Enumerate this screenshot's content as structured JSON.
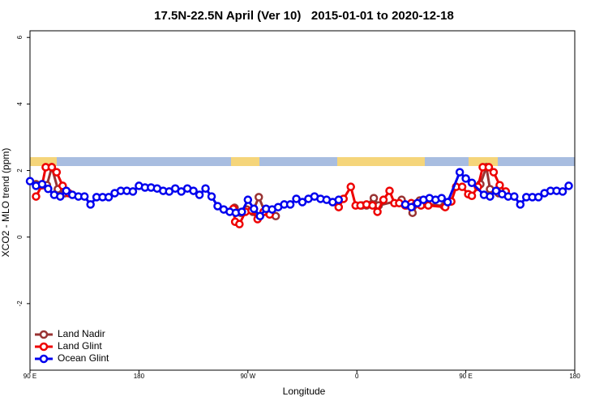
{
  "chart_data": {
    "type": "line",
    "title": "17.5N-22.5N April (Ver 10)   2015-01-01 to 2020-12-18",
    "x_label": "Longitude",
    "y_label": "XCO2 - MLO trend (ppm)",
    "xlim": [
      90,
      540
    ],
    "ylim": [
      -4,
      6.2
    ],
    "xticks": [
      {
        "value": 90,
        "label": "90 E"
      },
      180,
      {
        "value": 270,
        "label": "90 W"
      },
      {
        "value": 360,
        "label": "0"
      },
      {
        "value": 450,
        "label": "90 E"
      },
      {
        "value": 540,
        "label": "180"
      }
    ],
    "yticks": [
      -2,
      0,
      2,
      4,
      6
    ],
    "legend": "bottom-left",
    "series": [
      {
        "name": "Land Nadir",
        "color": "#993333",
        "x": [
          95,
          100,
          104,
          108,
          113,
          119,
          200,
          259,
          264,
          269,
          274,
          279,
          284,
          288,
          293,
          330,
          364,
          368,
          374,
          378,
          397,
          401,
          406,
          412,
          417,
          432,
          437,
          450,
          462,
          467,
          470,
          477
        ],
        "values": [
          1.59,
          1.56,
          1.56,
          2.1,
          1.44,
          1.32,
          null,
          0.88,
          0.73,
          0.83,
          0.76,
          1.2,
          0.76,
          0.76,
          0.63,
          null,
          0.95,
          0.95,
          1.17,
          0.95,
          1.12,
          0.95,
          0.73,
          1.1,
          1.0,
          0.93,
          1.07,
          null,
          1.59,
          2.1,
          1.44,
          1.32
        ]
      },
      {
        "name": "Land Glint",
        "color": "#ee0000",
        "x": [
          95,
          100,
          103,
          108,
          112,
          117,
          122,
          200,
          258,
          259.5,
          263,
          268,
          273,
          278,
          283,
          288,
          320,
          345,
          349,
          355,
          359,
          363,
          368,
          373,
          377,
          382,
          387,
          391,
          395,
          400,
          405,
          409,
          413,
          419,
          433,
          438,
          442,
          447,
          452,
          455,
          460,
          464,
          469,
          473,
          478,
          483
        ],
        "values": [
          1.22,
          1.56,
          2.1,
          2.1,
          1.95,
          1.54,
          1.32,
          null,
          0.85,
          0.46,
          0.39,
          0.76,
          0.8,
          0.54,
          0.76,
          0.68,
          null,
          0.9,
          1.15,
          1.51,
          0.95,
          0.95,
          0.98,
          0.95,
          0.76,
          1.12,
          1.39,
          1.02,
          1.02,
          0.95,
          1.02,
          1.0,
          0.95,
          0.95,
          0.9,
          1.07,
          1.51,
          1.51,
          1.29,
          1.24,
          1.51,
          2.1,
          2.1,
          1.95,
          1.56,
          1.37
        ]
      },
      {
        "name": "Ocean Glint",
        "color": "#0000ee",
        "x": [
          90,
          95,
          100,
          105,
          110,
          115,
          120,
          125,
          130,
          135,
          140,
          145,
          150,
          155,
          160,
          165,
          170,
          175,
          180,
          185,
          190,
          195,
          200,
          205,
          210,
          215,
          220,
          225,
          230,
          235,
          240,
          245,
          250,
          255,
          260,
          265,
          270,
          275,
          280,
          285,
          290,
          295,
          300,
          305,
          310,
          315,
          320,
          325,
          330,
          335,
          340,
          345,
          370,
          400,
          405,
          410,
          415,
          420,
          425,
          430,
          435,
          445,
          450,
          455,
          465,
          470,
          475,
          480,
          485,
          490,
          495,
          500,
          505,
          510,
          515,
          520,
          525,
          530,
          535
        ],
        "values": [
          1.68,
          1.54,
          1.59,
          1.45,
          1.27,
          1.22,
          1.39,
          1.27,
          1.22,
          1.22,
          0.98,
          1.2,
          1.2,
          1.2,
          1.32,
          1.39,
          1.39,
          1.37,
          1.54,
          1.49,
          1.49,
          1.46,
          1.39,
          1.37,
          1.46,
          1.37,
          1.46,
          1.39,
          1.27,
          1.46,
          1.22,
          0.93,
          0.83,
          0.76,
          0.73,
          0.76,
          1.12,
          0.85,
          0.63,
          0.85,
          0.83,
          0.9,
          0.98,
          0.98,
          1.15,
          1.05,
          1.15,
          1.22,
          1.15,
          1.12,
          1.05,
          1.12,
          null,
          0.98,
          0.9,
          1.02,
          1.12,
          1.17,
          1.12,
          1.17,
          1.05,
          1.95,
          1.76,
          1.63,
          1.27,
          1.22,
          1.39,
          1.29,
          1.22,
          1.22,
          0.98,
          1.2,
          1.2,
          1.2,
          1.32,
          1.39,
          1.39,
          1.37,
          1.54
        ]
      }
    ]
  }
}
